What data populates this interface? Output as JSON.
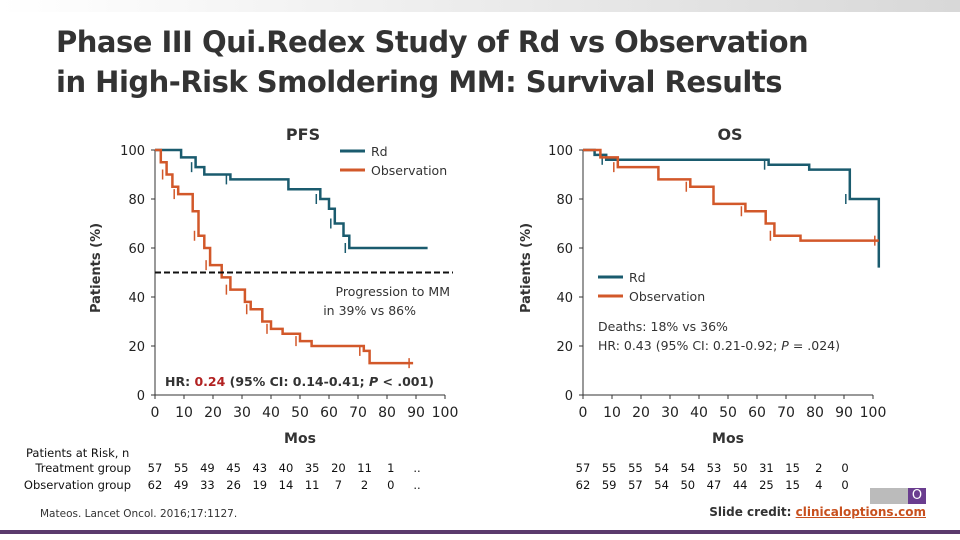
{
  "title": "Phase III Qui.Redex Study of Rd vs Observation in High-Risk Smoldering MM: Survival Results",
  "colors": {
    "rd": "#1a5b6e",
    "observation": "#d2582a",
    "hr_highlight": "#b22222"
  },
  "chart_data": [
    {
      "type": "line",
      "title": "PFS",
      "xlabel": "Mos",
      "ylabel": "Patients (%)",
      "xlim": [
        0,
        100
      ],
      "ylim": [
        0,
        100
      ],
      "xticks": [
        "0",
        "10",
        "20",
        "30",
        "40",
        "50",
        "60",
        "70",
        "80",
        "90",
        "100"
      ],
      "yticks": [
        "0",
        "20",
        "40",
        "60",
        "80",
        "100"
      ],
      "legend": "top-right",
      "series": [
        {
          "name": "Rd",
          "x": [
            0,
            9,
            14,
            17,
            26,
            46,
            57,
            60,
            62,
            65,
            67,
            94
          ],
          "y": [
            100,
            97,
            93,
            90,
            88,
            84,
            80,
            76,
            70,
            65,
            60,
            60
          ]
        },
        {
          "name": "Observation",
          "x": [
            0,
            2,
            4,
            6,
            8,
            13,
            15,
            17,
            19,
            23,
            26,
            31,
            33,
            37,
            40,
            44,
            50,
            54,
            72,
            74,
            89
          ],
          "y": [
            100,
            95,
            90,
            85,
            82,
            75,
            65,
            60,
            53,
            48,
            43,
            38,
            35,
            30,
            27,
            25,
            22,
            20,
            18,
            13,
            13
          ]
        }
      ],
      "reference_line": {
        "y": 50,
        "style": "dashed"
      },
      "annotations": [
        "Progression to MM in 39% vs 86%"
      ],
      "hr": {
        "prefix": "HR: ",
        "value": "0.24",
        "suffix": " (95% CI: 0.14-0.41; ",
        "p": "P",
        "p_rest": " < .001)"
      }
    },
    {
      "type": "line",
      "title": "OS",
      "xlabel": "Mos",
      "ylabel": "Patients (%)",
      "xlim": [
        0,
        100
      ],
      "ylim": [
        0,
        100
      ],
      "xticks": [
        "0",
        "10",
        "20",
        "30",
        "40",
        "50",
        "60",
        "70",
        "80",
        "90",
        "100"
      ],
      "yticks": [
        "0",
        "20",
        "40",
        "60",
        "80",
        "100"
      ],
      "legend": "center",
      "series": [
        {
          "name": "Rd",
          "x": [
            0,
            4,
            8,
            30,
            64,
            78,
            92,
            102
          ],
          "y": [
            100,
            98,
            96,
            96,
            94,
            92,
            80,
            52
          ]
        },
        {
          "name": "Observation",
          "x": [
            0,
            6,
            12,
            26,
            37,
            45,
            56,
            63,
            66,
            75,
            102
          ],
          "y": [
            100,
            97,
            93,
            88,
            85,
            78,
            75,
            70,
            65,
            63,
            63
          ]
        }
      ],
      "annotations": [
        "Deaths: 18% vs 36%"
      ],
      "hr": {
        "prefix": "HR: 0.43 (95% CI: 0.21-0.92; ",
        "p": "P",
        "p_rest": " = .024)"
      }
    }
  ],
  "risk": {
    "heading": "Patients at Risk, n",
    "labels": [
      "Treatment group",
      "Observation group"
    ],
    "pfs": [
      [
        "57",
        "55",
        "49",
        "45",
        "43",
        "40",
        "35",
        "20",
        "11",
        "1",
        ".."
      ],
      [
        "62",
        "49",
        "33",
        "26",
        "19",
        "14",
        "11",
        "7",
        "2",
        "0",
        ".."
      ]
    ],
    "os": [
      [
        "57",
        "55",
        "55",
        "54",
        "54",
        "53",
        "50",
        "31",
        "15",
        "2",
        "0"
      ],
      [
        "62",
        "59",
        "57",
        "54",
        "50",
        "47",
        "44",
        "25",
        "15",
        "4",
        "0"
      ]
    ]
  },
  "reference": "Mateos. Lancet Oncol. 2016;17:1127.",
  "credit": {
    "label": "Slide credit: ",
    "link": "clinicaloptions.com"
  },
  "logo": "CCO"
}
